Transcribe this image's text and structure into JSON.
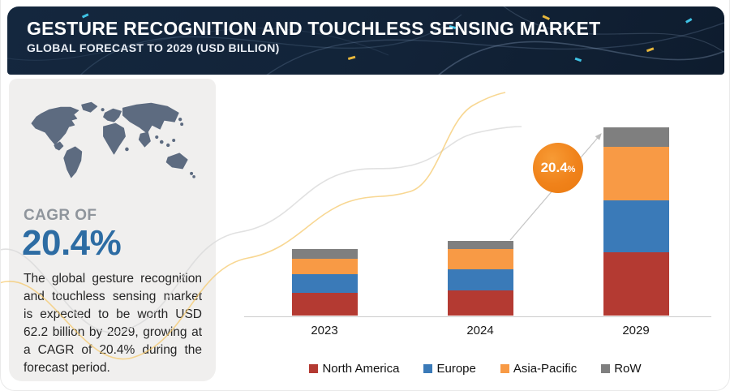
{
  "header": {
    "title": "Gesture Recognition and Touchless Sensing Market",
    "subtitle": "Global Forecast to 2029 (USD Billion)"
  },
  "sidebar": {
    "map_icon": "world-map",
    "cagr_label": "CAGR OF",
    "cagr_value": "20.4%",
    "description": "The global gesture recognition and touchless sensing market is expected to be worth USD 62.2 billion by 2029, growing at a CAGR of 20.4% during the forecast period."
  },
  "annotation": {
    "badge_value": "20.4",
    "badge_suffix": "%",
    "meaning": "CAGR growth arrow from 2024 bar to 2029 bar"
  },
  "colors": {
    "header_bg": "#14273e",
    "panel_bg": "#f0efee",
    "map_fill": "#5d6b80",
    "cagr_blue": "#2d6ca3",
    "badge_orange": "#f0821a",
    "axis_gray": "#cccccc",
    "wave_gray": "#d9d9d9",
    "wave_yellow": "#f6c96e"
  },
  "chart_data": {
    "type": "bar",
    "stacked": true,
    "title": "Gesture Recognition and Touchless Sensing Market",
    "unit": "USD Billion",
    "categories": [
      "2023",
      "2024",
      "2029"
    ],
    "series": [
      {
        "name": "North America",
        "color": "#b43a32",
        "values": [
          7.4,
          8.4,
          20.8
        ]
      },
      {
        "name": "Europe",
        "color": "#3a7ab8",
        "values": [
          6.2,
          6.8,
          17.2
        ]
      },
      {
        "name": "Asia-Pacific",
        "color": "#f89a45",
        "values": [
          5.2,
          6.8,
          17.9
        ]
      },
      {
        "name": "RoW",
        "color": "#7f7f7f",
        "values": [
          3.1,
          2.7,
          6.4
        ]
      }
    ],
    "totals": [
      21.9,
      24.7,
      62.2
    ],
    "cagr_percent": 20.4,
    "ylim": [
      0,
      65
    ],
    "grid": false,
    "y_axis_shown": false,
    "legend_position": "bottom"
  }
}
